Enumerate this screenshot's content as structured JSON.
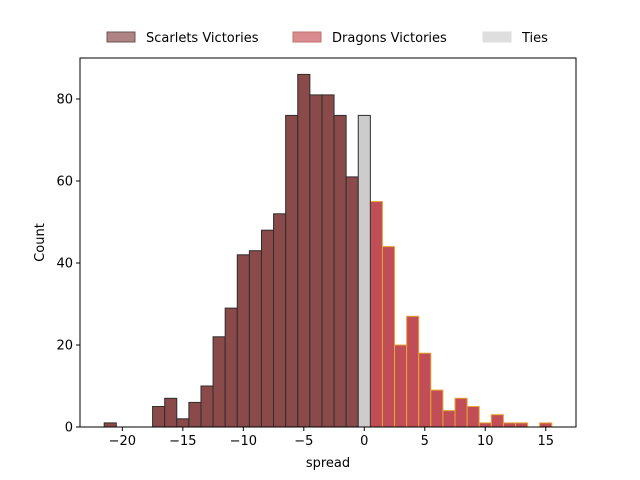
{
  "chart_data": {
    "type": "bar",
    "title": "",
    "xlabel": "spread",
    "ylabel": "Count",
    "xlim": [
      -23.5,
      17.5
    ],
    "ylim": [
      0,
      90
    ],
    "xticks": [
      -20,
      -15,
      -10,
      -5,
      0,
      5,
      10,
      15
    ],
    "yticks": [
      0,
      20,
      40,
      60,
      80
    ],
    "xtick_labels": [
      "−20",
      "−15",
      "−10",
      "−5",
      "0",
      "5",
      "10",
      "15"
    ],
    "ytick_labels": [
      "0",
      "20",
      "40",
      "60",
      "80"
    ],
    "legend_position": "above-top",
    "grid": false,
    "series": [
      {
        "name": "Scarlets Victories",
        "fill": "#8b4a4a",
        "edge": "#2e2e2e",
        "bins": [
          {
            "x": -21,
            "count": 1
          },
          {
            "x": -20,
            "count": 0
          },
          {
            "x": -19,
            "count": 0
          },
          {
            "x": -18,
            "count": 0
          },
          {
            "x": -17,
            "count": 5
          },
          {
            "x": -16,
            "count": 7
          },
          {
            "x": -15,
            "count": 2
          },
          {
            "x": -14,
            "count": 6
          },
          {
            "x": -13,
            "count": 10
          },
          {
            "x": -12,
            "count": 22
          },
          {
            "x": -11,
            "count": 29
          },
          {
            "x": -10,
            "count": 42
          },
          {
            "x": -9,
            "count": 43
          },
          {
            "x": -8,
            "count": 48
          },
          {
            "x": -7,
            "count": 52
          },
          {
            "x": -6,
            "count": 76
          },
          {
            "x": -5,
            "count": 86
          },
          {
            "x": -4,
            "count": 81
          },
          {
            "x": -3,
            "count": 81
          },
          {
            "x": -2,
            "count": 76
          },
          {
            "x": -1,
            "count": 61
          }
        ]
      },
      {
        "name": "Dragons Victories",
        "fill": "#c14e56",
        "edge": "#e8a435",
        "bins": [
          {
            "x": 1,
            "count": 55
          },
          {
            "x": 2,
            "count": 44
          },
          {
            "x": 3,
            "count": 20
          },
          {
            "x": 4,
            "count": 27
          },
          {
            "x": 5,
            "count": 18
          },
          {
            "x": 6,
            "count": 9
          },
          {
            "x": 7,
            "count": 4
          },
          {
            "x": 8,
            "count": 7
          },
          {
            "x": 9,
            "count": 5
          },
          {
            "x": 10,
            "count": 1
          },
          {
            "x": 11,
            "count": 3
          },
          {
            "x": 12,
            "count": 1
          },
          {
            "x": 13,
            "count": 1
          },
          {
            "x": 14,
            "count": 0
          },
          {
            "x": 15,
            "count": 1
          }
        ]
      },
      {
        "name": "Ties",
        "fill": "#cccccc",
        "edge": "#2e2e2e",
        "bins": [
          {
            "x": 0,
            "count": 76
          }
        ]
      }
    ],
    "legend_swatches": [
      {
        "fill": "#b08383",
        "edge": "#6e5555"
      },
      {
        "fill": "#d98b8f",
        "edge": "#c5706e"
      },
      {
        "fill": "#dedede",
        "edge": "#dedede"
      }
    ]
  }
}
